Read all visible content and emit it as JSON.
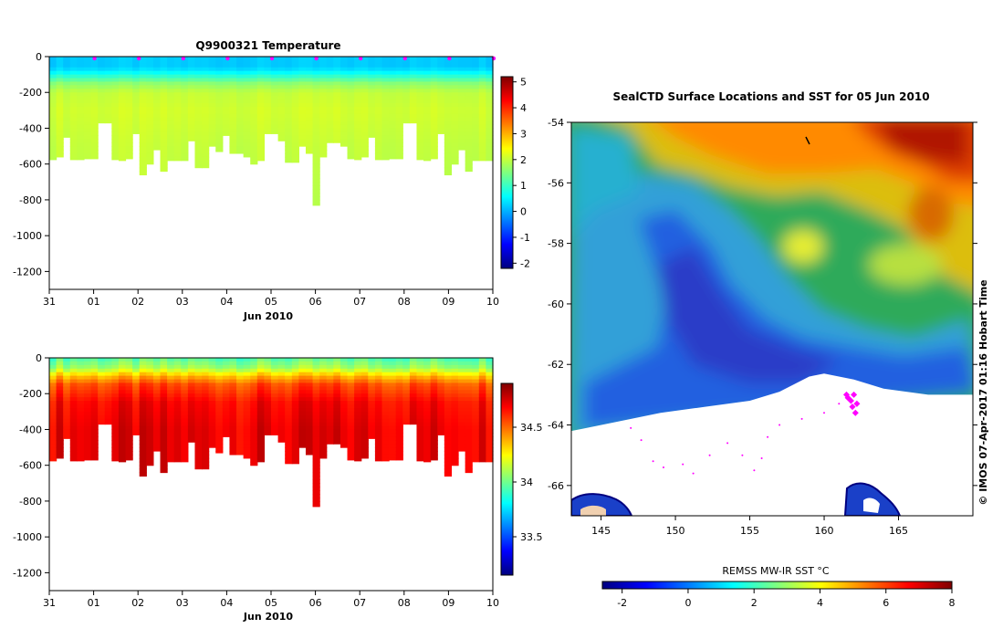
{
  "colors": {
    "jet": [
      "#00007f",
      "#0000ff",
      "#007fff",
      "#00ffff",
      "#7fff7f",
      "#ffff00",
      "#ff7f00",
      "#ff0000",
      "#7f0000"
    ],
    "glider_marker": "#ff00ff",
    "land": "#ffffff",
    "bathy_mask": "#ffffff"
  },
  "chart_data": [
    {
      "type": "heatmap",
      "panel": "temperature-section",
      "title": "Q9900321  Temperature",
      "xlabel": "Jun 2010",
      "ylabel": "",
      "x_ticks": [
        "31",
        "01",
        "02",
        "03",
        "04",
        "05",
        "06",
        "07",
        "08",
        "09",
        "10"
      ],
      "y_ticks": [
        "0",
        "-200",
        "-400",
        "-600",
        "-800",
        "-1000",
        "-1200"
      ],
      "ylim": [
        -1300,
        0
      ],
      "profile_count": 64,
      "profile_max_depth_m": [
        575,
        560,
        450,
        575,
        575,
        570,
        570,
        370,
        370,
        575,
        580,
        570,
        430,
        660,
        600,
        520,
        640,
        580,
        580,
        580,
        470,
        620,
        620,
        500,
        530,
        440,
        540,
        540,
        560,
        600,
        580,
        430,
        430,
        470,
        590,
        590,
        500,
        540,
        830,
        560,
        480,
        480,
        500,
        570,
        575,
        560,
        450,
        575,
        575,
        570,
        570,
        370,
        370,
        575,
        580,
        570,
        430,
        660,
        600,
        520,
        640,
        580,
        580,
        580
      ],
      "value_profile": [
        [
          0,
          0.2
        ],
        [
          60,
          0.2
        ],
        [
          90,
          0.6
        ],
        [
          120,
          1.1
        ],
        [
          150,
          1.6
        ],
        [
          200,
          2.0
        ],
        [
          300,
          2.1
        ],
        [
          500,
          2.0
        ],
        [
          800,
          1.9
        ]
      ],
      "surface_marker_positions_days": [
        1.0,
        2.0,
        3.0,
        4.0,
        5.0,
        6.0,
        7.0,
        8.0,
        9.0,
        10.0
      ],
      "colorbar": {
        "min": -2.2,
        "max": 5.2,
        "ticks": [
          "5",
          "4",
          "3",
          "2",
          "1",
          "0",
          "-1",
          "-2"
        ]
      }
    },
    {
      "type": "heatmap",
      "panel": "salinity-section",
      "title": "",
      "xlabel": "Jun 2010",
      "x_ticks": [
        "31",
        "01",
        "02",
        "03",
        "04",
        "05",
        "06",
        "07",
        "08",
        "09",
        "10"
      ],
      "y_ticks": [
        "0",
        "-200",
        "-400",
        "-600",
        "-800",
        "-1000",
        "-1200"
      ],
      "ylim": [
        -1300,
        0
      ],
      "value_profile": [
        [
          0,
          33.95
        ],
        [
          60,
          34.1
        ],
        [
          100,
          34.35
        ],
        [
          150,
          34.55
        ],
        [
          250,
          34.68
        ],
        [
          400,
          34.72
        ],
        [
          800,
          34.72
        ]
      ],
      "colorbar": {
        "min": 33.15,
        "max": 34.9,
        "ticks": [
          "34.5",
          "34",
          "33.5"
        ]
      }
    },
    {
      "type": "heatmap",
      "panel": "sst-map",
      "title": "SealCTD Surface Locations and SST for 05 Jun 2010",
      "x_ticks": [
        "145",
        "150",
        "155",
        "160",
        "165"
      ],
      "y_ticks": [
        "-54",
        "-56",
        "-58",
        "-60",
        "-62",
        "-64",
        "-66"
      ],
      "xlim": [
        143,
        170
      ],
      "ylim": [
        -67,
        -54
      ],
      "ice_edge_lat_by_lon": [
        [
          143,
          -64.2
        ],
        [
          146,
          -63.9
        ],
        [
          149,
          -63.6
        ],
        [
          152,
          -63.4
        ],
        [
          155,
          -63.2
        ],
        [
          157,
          -62.9
        ],
        [
          159,
          -62.4
        ],
        [
          160,
          -62.3
        ],
        [
          162,
          -62.5
        ],
        [
          164,
          -62.8
        ],
        [
          167,
          -63.0
        ],
        [
          170,
          -63.0
        ]
      ],
      "profile_locations": [
        [
          161.6,
          -63.1
        ],
        [
          161.8,
          -63.2
        ],
        [
          162.0,
          -63.0
        ],
        [
          161.9,
          -63.4
        ],
        [
          162.1,
          -63.6
        ],
        [
          161.5,
          -63.0
        ],
        [
          162.2,
          -63.3
        ]
      ],
      "track_points": [
        [
          147.0,
          -64.1
        ],
        [
          147.7,
          -64.5
        ],
        [
          148.5,
          -65.2
        ],
        [
          149.2,
          -65.4
        ],
        [
          150.5,
          -65.3
        ],
        [
          151.2,
          -65.6
        ],
        [
          152.3,
          -65.0
        ],
        [
          153.5,
          -64.6
        ],
        [
          154.5,
          -65.0
        ],
        [
          155.3,
          -65.5
        ],
        [
          155.8,
          -65.1
        ],
        [
          156.2,
          -64.4
        ],
        [
          157.0,
          -64.0
        ],
        [
          158.5,
          -63.8
        ],
        [
          160.0,
          -63.6
        ],
        [
          161.0,
          -63.3
        ],
        [
          161.5,
          -63.1
        ]
      ],
      "colorbar": {
        "label": "REMSS MW-IR SST °C",
        "min": -2.6,
        "max": 8,
        "ticks": [
          "-2",
          "0",
          "2",
          "4",
          "6",
          "8"
        ]
      }
    }
  ],
  "credit": "© IMOS 07-Apr-2017 01:16 Hobart Time"
}
